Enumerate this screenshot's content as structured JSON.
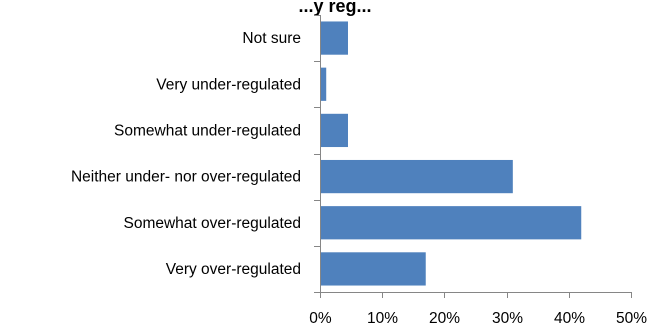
{
  "chart_data": {
    "type": "bar",
    "orientation": "horizontal",
    "title": "...y reg...",
    "categories": [
      "Not sure",
      "Very under-regulated",
      "Somewhat under-regulated",
      "Neither under- nor over-regulated",
      "Somewhat over-regulated",
      "Very over-regulated"
    ],
    "values": [
      4.5,
      1.0,
      4.5,
      31.0,
      42.0,
      17.0
    ],
    "xlim": [
      0,
      50
    ],
    "x_ticks": [
      0,
      10,
      20,
      30,
      40,
      50
    ],
    "x_tick_labels": [
      "0%",
      "10%",
      "20%",
      "30%",
      "40%",
      "50%"
    ],
    "xlabel": "",
    "ylabel": "",
    "grid": false,
    "legend": "none",
    "bar_color": "#4F81BD"
  }
}
